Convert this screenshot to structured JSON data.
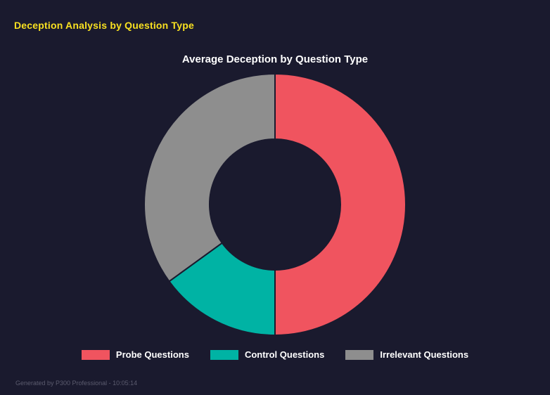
{
  "page": {
    "heading": "Deception Analysis by Question Type",
    "footer": "Generated by P300 Professional - 10:05:14"
  },
  "chart_data": {
    "type": "pie",
    "subtype": "donut",
    "title": "Average Deception by Question Type",
    "labels": [
      "Probe Questions",
      "Control Questions",
      "Irrelevant Questions"
    ],
    "values": [
      50,
      15,
      35
    ],
    "unit": "percent",
    "colors": [
      "#f0545f",
      "#00b3a4",
      "#8e8e8e"
    ],
    "legend_position": "bottom",
    "background": "#1a1a2e",
    "inner_radius_ratio": 0.5,
    "start_angle_deg": -90,
    "direction": "clockwise"
  }
}
